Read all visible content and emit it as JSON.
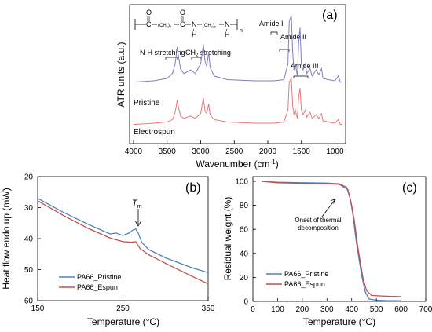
{
  "chart_data": [
    {
      "panel": "(a)",
      "type": "line",
      "xlabel_main": "Wavenumber (cm",
      "xlabel_sup": "-1",
      "xlabel_end": ")",
      "ylabel": "ATR units (a.u.)",
      "xlim": [
        4000,
        900
      ],
      "xticks": [
        "4000",
        "3500",
        "3000",
        "2500",
        "2000",
        "1500",
        "1000"
      ],
      "xtick_values": [
        4000,
        3500,
        3000,
        2500,
        2000,
        1500,
        1000
      ],
      "series": [
        {
          "name": "Pristine",
          "color": "#7f7fbf",
          "baseline": 0.45,
          "x": [
            4000,
            3700,
            3500,
            3420,
            3380,
            3350,
            3330,
            3300,
            3250,
            3150,
            3080,
            3000,
            2960,
            2935,
            2910,
            2880,
            2860,
            2800,
            2600,
            2200,
            1900,
            1760,
            1700,
            1680,
            1650,
            1630,
            1610,
            1590,
            1560,
            1540,
            1520,
            1500,
            1475,
            1440,
            1420,
            1370,
            1340,
            1280,
            1240,
            1200,
            1180,
            1100,
            1000,
            950,
            920,
            900
          ],
          "y": [
            0.45,
            0.46,
            0.48,
            0.52,
            0.6,
            0.74,
            0.66,
            0.56,
            0.52,
            0.55,
            0.52,
            0.6,
            0.76,
            0.62,
            0.58,
            0.7,
            0.57,
            0.5,
            0.47,
            0.46,
            0.46,
            0.47,
            0.6,
            0.95,
            1.0,
            0.7,
            0.55,
            0.6,
            0.5,
            0.78,
            0.9,
            0.6,
            0.55,
            0.6,
            0.52,
            0.56,
            0.5,
            0.55,
            0.51,
            0.56,
            0.48,
            0.47,
            0.46,
            0.5,
            0.45,
            0.45
          ]
        },
        {
          "name": "Electrospun",
          "color": "#e87a7a",
          "baseline": 0.1,
          "x": [
            4000,
            3700,
            3500,
            3420,
            3380,
            3350,
            3330,
            3300,
            3250,
            3150,
            3080,
            3000,
            2960,
            2935,
            2910,
            2880,
            2860,
            2800,
            2600,
            2200,
            1900,
            1760,
            1700,
            1680,
            1650,
            1630,
            1610,
            1590,
            1560,
            1540,
            1520,
            1500,
            1475,
            1440,
            1420,
            1370,
            1340,
            1280,
            1240,
            1200,
            1180,
            1100,
            1000,
            950,
            920,
            900
          ],
          "y": [
            0.1,
            0.11,
            0.12,
            0.14,
            0.2,
            0.3,
            0.24,
            0.17,
            0.15,
            0.17,
            0.15,
            0.19,
            0.32,
            0.21,
            0.19,
            0.27,
            0.18,
            0.14,
            0.12,
            0.11,
            0.11,
            0.12,
            0.22,
            0.45,
            0.48,
            0.26,
            0.18,
            0.22,
            0.15,
            0.33,
            0.4,
            0.22,
            0.18,
            0.22,
            0.16,
            0.2,
            0.15,
            0.18,
            0.15,
            0.19,
            0.13,
            0.12,
            0.11,
            0.14,
            0.1,
            0.1
          ]
        }
      ],
      "annotations": {
        "nh": "N-H stretching",
        "ch2_main": "CH",
        "ch2_sub": "2",
        "ch2_end": " stretching",
        "amide1": "Amide I",
        "amide2": "Amide II",
        "amide3": "Amide III",
        "pristine": "Pristine",
        "electrospun": "Electrospun"
      },
      "structure": {
        "sub1": "(CH",
        "sub1b": "2",
        "sub1c": ")",
        "sub1d": "4",
        "sub2": "(CH",
        "sub2b": "2",
        "sub2c": ")",
        "sub2d": "6",
        "o": "O",
        "n": "N",
        "h": "H",
        "c": "C",
        "nsub": "n"
      }
    },
    {
      "panel": "(b)",
      "type": "line",
      "xlabel": "Temperature (°C)",
      "ylabel": "Heat flow endo up (mW)",
      "xlim": [
        150,
        350
      ],
      "ylim": [
        20,
        60
      ],
      "y_inverted": true,
      "xticks": [
        "150",
        "250",
        "350"
      ],
      "xtick_values": [
        150,
        250,
        350
      ],
      "yticks": [
        "20",
        "30",
        "40",
        "50",
        "60"
      ],
      "ytick_values": [
        20,
        30,
        40,
        50,
        60
      ],
      "annotation_main": "T",
      "annotation_sub": "m",
      "series": [
        {
          "name": "PA66_Pristine",
          "color": "#4f81bd",
          "x": [
            150,
            180,
            210,
            235,
            242,
            250,
            257,
            262,
            265,
            268,
            272,
            280,
            300,
            330,
            350
          ],
          "y": [
            27,
            31.5,
            35.5,
            38.5,
            38.2,
            39.0,
            38.2,
            37.2,
            36.9,
            38.2,
            41.2,
            43.5,
            46.2,
            49.3,
            51
          ]
        },
        {
          "name": "PA66_Espun",
          "color": "#c0504d",
          "x": [
            150,
            180,
            210,
            235,
            250,
            260,
            265,
            270,
            280,
            300,
            330,
            350
          ],
          "y": [
            27.8,
            32.5,
            36.8,
            39.8,
            41.0,
            41.2,
            41.0,
            43.2,
            45.2,
            48.0,
            52.0,
            54.6
          ]
        }
      ]
    },
    {
      "panel": "(c)",
      "type": "line",
      "xlabel": "Temperature (°C)",
      "ylabel": "Residual weight (%)",
      "xlim": [
        0,
        700
      ],
      "ylim": [
        0,
        100
      ],
      "xticks": [
        "0",
        "100",
        "200",
        "300",
        "400",
        "500",
        "600",
        "700"
      ],
      "xtick_values": [
        0,
        100,
        200,
        300,
        400,
        500,
        600,
        700
      ],
      "yticks": [
        "0",
        "20",
        "40",
        "60",
        "80",
        "100"
      ],
      "ytick_values": [
        0,
        20,
        40,
        60,
        80,
        100
      ],
      "annotation_line1": "Onset of thermal",
      "annotation_line2": "decomposition",
      "series": [
        {
          "name": "PA66_Pristine",
          "color": "#4f81bd",
          "x": [
            35,
            100,
            200,
            300,
            350,
            380,
            395,
            405,
            420,
            440,
            455,
            470,
            500,
            550,
            600
          ],
          "y": [
            100,
            99.2,
            98.8,
            98.5,
            98,
            95,
            85,
            72,
            48,
            22,
            8,
            2,
            1,
            0.6,
            0.5
          ]
        },
        {
          "name": "PA66_Espun",
          "color": "#c0504d",
          "x": [
            35,
            100,
            200,
            300,
            350,
            385,
            400,
            410,
            425,
            445,
            460,
            480,
            520,
            560,
            600
          ],
          "y": [
            100,
            98.8,
            98.3,
            98,
            97.5,
            93,
            80,
            68,
            45,
            20,
            9,
            5,
            4.5,
            4.2,
            4
          ]
        }
      ]
    }
  ]
}
